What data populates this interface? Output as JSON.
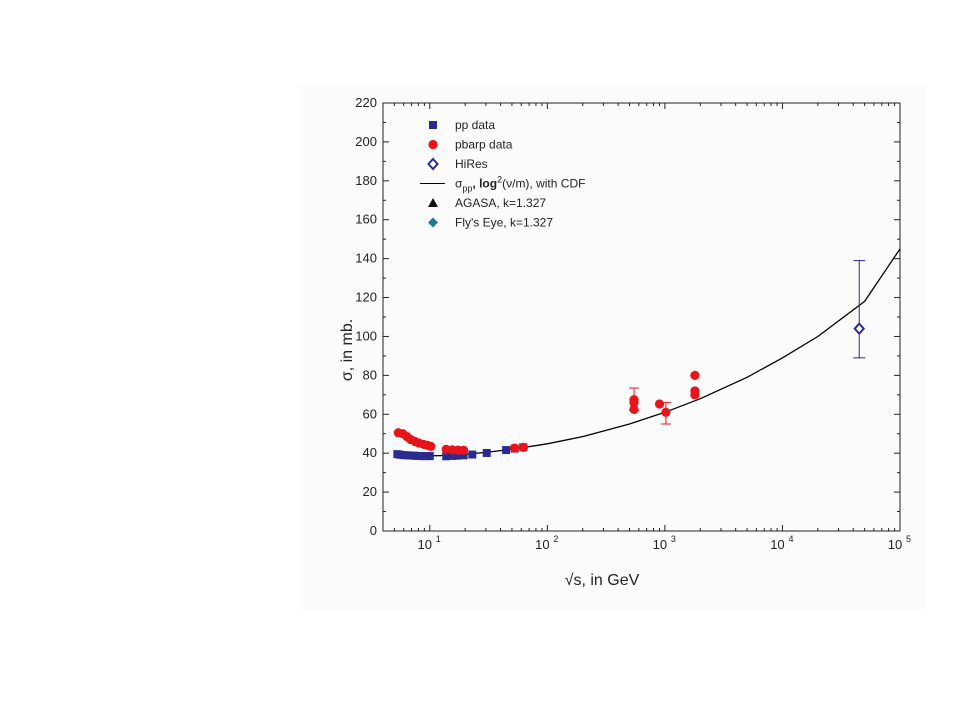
{
  "chart_data": {
    "type": "scatter",
    "title": "",
    "xlabel": "√s, in GeV",
    "ylabel": "σ, in mb.",
    "x_scale": "log",
    "xlim": [
      4,
      100000
    ],
    "ylim": [
      0,
      220
    ],
    "xticks": [
      {
        "value": 10,
        "base": "10",
        "exp": "1"
      },
      {
        "value": 100,
        "base": "10",
        "exp": "2"
      },
      {
        "value": 1000,
        "base": "10",
        "exp": "3"
      },
      {
        "value": 10000,
        "base": "10",
        "exp": "4"
      },
      {
        "value": 100000,
        "base": "10",
        "exp": "5"
      }
    ],
    "yticks": [
      "0",
      "20",
      "40",
      "60",
      "80",
      "100",
      "120",
      "140",
      "160",
      "180",
      "200",
      "220"
    ],
    "grid": false,
    "legend_position": "top-left",
    "legend": [
      {
        "label": "pp data",
        "marker": "square",
        "color": "#2b2b8f"
      },
      {
        "label": "pbarp data",
        "marker": "circle",
        "color": "#e8141c"
      },
      {
        "label": "HiRes",
        "marker": "open-diamond",
        "color": "#2b2b8f"
      },
      {
        "label_parts": [
          "σ",
          "pp",
          ", log",
          "2",
          "(ν/m), with CDF"
        ],
        "marker": "line",
        "color": "#000000"
      },
      {
        "label": "AGASA,   k=1.327",
        "marker": "triangle",
        "color": "#111111"
      },
      {
        "label": "Fly's Eye, k=1.327",
        "marker": "diamond",
        "color": "#1f7a8c"
      }
    ],
    "series": [
      {
        "name": "pp data",
        "marker": "square",
        "color": "#2b2b8f",
        "points": [
          [
            5.3,
            39.5
          ],
          [
            5.6,
            39.2
          ],
          [
            6.0,
            39.0
          ],
          [
            6.4,
            38.9
          ],
          [
            6.9,
            38.8
          ],
          [
            7.4,
            38.7
          ],
          [
            7.9,
            38.6
          ],
          [
            8.5,
            38.5
          ],
          [
            9.2,
            38.5
          ],
          [
            10.0,
            38.5
          ],
          [
            13.8,
            38.4
          ],
          [
            15.4,
            38.6
          ],
          [
            16.9,
            38.7
          ],
          [
            19.4,
            38.9
          ],
          [
            23.0,
            39.3
          ],
          [
            30.5,
            40.1
          ],
          [
            44.6,
            41.6
          ],
          [
            52.8,
            42.4
          ],
          [
            62.4,
            43.0
          ]
        ]
      },
      {
        "name": "pbarp data",
        "marker": "circle",
        "color": "#e8141c",
        "points": [
          [
            5.4,
            50.5
          ],
          [
            5.9,
            50.0
          ],
          [
            6.4,
            48.5
          ],
          [
            6.9,
            47.0
          ],
          [
            7.5,
            46.0
          ],
          [
            8.1,
            45.2
          ],
          [
            8.9,
            44.5
          ],
          [
            9.6,
            44.0
          ],
          [
            10.2,
            43.5
          ],
          [
            13.8,
            42.0
          ],
          [
            15.6,
            41.7
          ],
          [
            17.4,
            41.6
          ],
          [
            19.4,
            41.5
          ],
          [
            52.6,
            42.6
          ],
          [
            62.7,
            43.0
          ],
          [
            546,
            67.5
          ],
          [
            546,
            66.0
          ],
          [
            546,
            62.5
          ],
          [
            900,
            65.3
          ],
          [
            1020,
            61.0
          ],
          [
            1800,
            80.0
          ],
          [
            1800,
            72.0
          ],
          [
            1800,
            70.0
          ]
        ]
      },
      {
        "name": "HiRes",
        "marker": "open-diamond",
        "color": "#2b2b8f",
        "points": [
          [
            45000,
            104
          ]
        ],
        "error_low": [
          89
        ],
        "error_high": [
          139
        ]
      },
      {
        "name": "σpp, log²(ν/m), with CDF",
        "marker": "line",
        "color": "#000000",
        "points": [
          [
            5,
            39.5
          ],
          [
            7,
            38.8
          ],
          [
            10,
            38.6
          ],
          [
            15,
            38.9
          ],
          [
            20,
            39.4
          ],
          [
            30,
            40.4
          ],
          [
            50,
            42.0
          ],
          [
            100,
            44.8
          ],
          [
            200,
            48.5
          ],
          [
            500,
            55.0
          ],
          [
            1000,
            61.0
          ],
          [
            2000,
            68.0
          ],
          [
            5000,
            79.0
          ],
          [
            10000,
            89.0
          ],
          [
            20000,
            100.0
          ],
          [
            50000,
            118.0
          ],
          [
            100000,
            145.0
          ]
        ]
      }
    ],
    "error_bars": [
      {
        "x": 546,
        "low": 62,
        "high": 73.5
      },
      {
        "x": 1020,
        "low": 55,
        "high": 66
      }
    ]
  }
}
